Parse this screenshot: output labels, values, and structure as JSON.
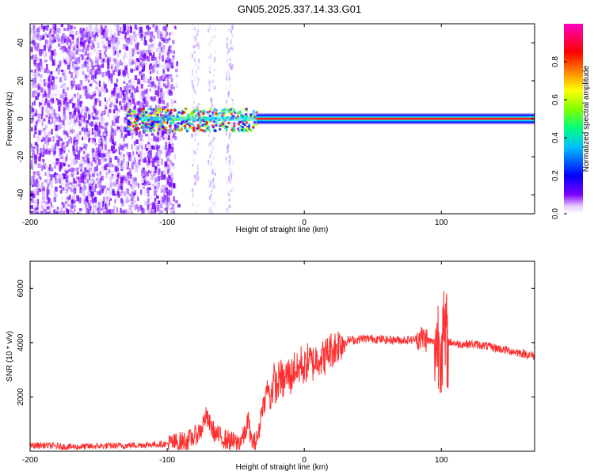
{
  "title": "GN05.2025.337.14.33.G01",
  "chart_data": [
    {
      "type": "heatmap",
      "xlabel": "Height of straight line (km)",
      "ylabel": "Frequency (Hz)",
      "xlim": [
        -200,
        168
      ],
      "ylim": [
        -50,
        50
      ],
      "xticks": [
        -200,
        -100,
        0,
        100
      ],
      "yticks": [
        -40,
        -20,
        0,
        20,
        40
      ],
      "grid": false,
      "colorbar": {
        "label": "Normalized spectral amplitude",
        "range": [
          0,
          1
        ],
        "ticks": [
          "0.0",
          "0.2",
          "0.4",
          "0.6",
          "0.8"
        ],
        "colormap": [
          "#ffffff",
          "#7f00ff",
          "#0000ff",
          "#00bfff",
          "#00ff80",
          "#80ff00",
          "#ffff00",
          "#ff8000",
          "#ff0000",
          "#ff00c0"
        ]
      },
      "features": {
        "noisy_region_km": [
          -200,
          -100
        ],
        "scatter_columns_km": [
          -80,
          -68,
          -55
        ],
        "carrier_band_km": [
          -125,
          168
        ],
        "carrier_frequency_hz": 0
      }
    },
    {
      "type": "line",
      "xlabel": "Height of straight line (km)",
      "ylabel": "SNR (10 * v/v)",
      "xlim": [
        -200,
        168
      ],
      "ylim": [
        0,
        7000
      ],
      "xticks": [
        -200,
        -100,
        0,
        100
      ],
      "yticks": [
        2000,
        4000,
        6000
      ],
      "grid": false,
      "line_color": "#ff3030",
      "series": [
        {
          "x": [
            -200,
            -190,
            -180,
            -170,
            -160,
            -150,
            -140,
            -130,
            -120,
            -110,
            -100,
            -95,
            -90,
            -85,
            -80,
            -75,
            -72,
            -70,
            -68,
            -65,
            -62,
            -60,
            -58,
            -55,
            -52,
            -50,
            -48,
            -45,
            -43,
            -41,
            -39,
            -37,
            -35,
            -33,
            -31,
            -29,
            -27,
            -25,
            -22,
            -20,
            -18,
            -15,
            -12,
            -10,
            -7,
            -5,
            -2,
            0,
            3,
            6,
            10,
            14,
            18,
            22,
            26,
            30,
            34,
            38,
            42,
            50,
            60,
            70,
            80,
            84,
            88,
            92,
            96,
            98,
            100,
            102,
            104,
            108,
            112,
            120,
            130,
            140,
            150,
            160,
            168
          ],
          "y": [
            200,
            220,
            180,
            160,
            170,
            190,
            200,
            210,
            230,
            250,
            270,
            300,
            350,
            400,
            550,
            800,
            1300,
            1100,
            900,
            650,
            550,
            500,
            450,
            400,
            350,
            300,
            320,
            500,
            650,
            1200,
            450,
            300,
            380,
            700,
            1600,
            1800,
            2400,
            2000,
            2600,
            2300,
            2800,
            2500,
            2900,
            2700,
            3100,
            2900,
            3300,
            3000,
            3400,
            3200,
            3500,
            3400,
            3700,
            3800,
            4000,
            4050,
            4100,
            4100,
            4150,
            4150,
            4100,
            4100,
            4100,
            4200,
            4150,
            4050,
            4000,
            4100,
            4000,
            4100,
            4050,
            4000,
            3950,
            3950,
            3900,
            3800,
            3700,
            3600,
            3500
          ]
        }
      ]
    }
  ]
}
